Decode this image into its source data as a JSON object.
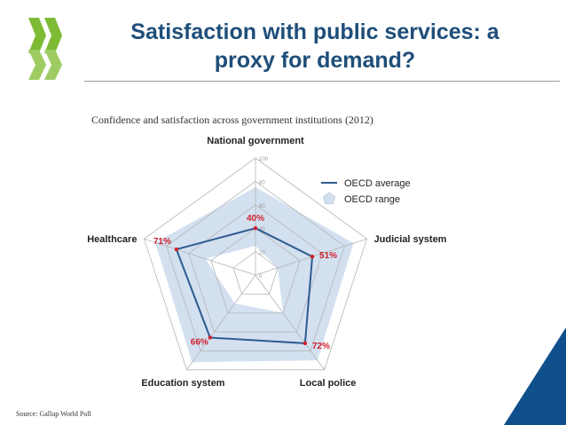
{
  "slide": {
    "title_line1": "Satisfaction with public services: a",
    "title_line2": "proxy for demand?",
    "source": "Source: Gallup World Poll"
  },
  "colors": {
    "title": "#1f4e7a",
    "logo_green": "#7dbb35",
    "average_line": "#2e5b8f",
    "range_fill": "#d3e0f0",
    "value_label": "#d0202c",
    "corner_blue": "#0f4f8c"
  },
  "chart_data": {
    "type": "radar",
    "title": "Confidence and satisfaction across government institutions (2012)",
    "axes": [
      "National government",
      "Judicial system",
      "Local police",
      "Education system",
      "Healthcare"
    ],
    "scale": {
      "min": 0,
      "max": 100,
      "ticks": [
        0,
        20,
        40,
        60,
        80,
        100
      ]
    },
    "series": [
      {
        "name": "OECD average",
        "kind": "line",
        "values": [
          40,
          51,
          72,
          66,
          71
        ],
        "labels": [
          "40%",
          "51%",
          "72%",
          "66%",
          "71%"
        ]
      },
      {
        "name": "OECD range",
        "kind": "band",
        "min": [
          25,
          20,
          40,
          30,
          45
        ],
        "max": [
          75,
          88,
          90,
          92,
          90
        ]
      }
    ],
    "legend_position": "top-right",
    "grid": true
  }
}
